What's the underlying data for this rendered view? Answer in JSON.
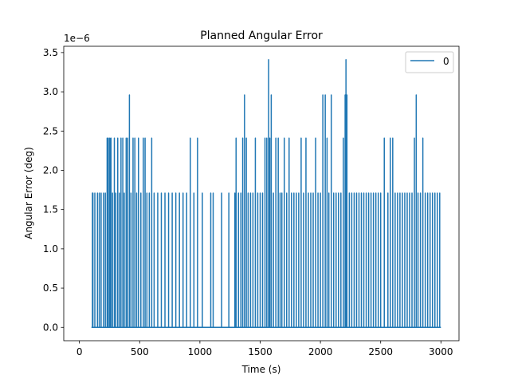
{
  "chart_data": {
    "type": "line",
    "title": "Planned Angular Error",
    "xlabel": "Time (s)",
    "ylabel": "Angular Error (deg)",
    "y_offset_label": "1e−6",
    "xlim": [
      -130,
      3150
    ],
    "ylim": [
      -0.17,
      3.58
    ],
    "x_ticks": [
      0,
      500,
      1000,
      1500,
      2000,
      2500,
      3000
    ],
    "y_ticks": [
      0.0,
      0.5,
      1.0,
      1.5,
      2.0,
      2.5,
      3.0,
      3.5
    ],
    "x_tick_labels": [
      "0",
      "500",
      "1000",
      "1500",
      "2000",
      "2500",
      "3000"
    ],
    "y_tick_labels": [
      "0.0",
      "0.5",
      "1.0",
      "1.5",
      "2.0",
      "2.5",
      "3.0",
      "3.5"
    ],
    "legend": {
      "entries": [
        "0"
      ],
      "placement": "upper right"
    },
    "series": [
      {
        "name": "0",
        "color": "#1f77b4",
        "x_start": 100,
        "x_end": 3000,
        "baseline": 0.0,
        "spikes": [
          [
            108,
            1.71
          ],
          [
            112,
            1.71
          ],
          [
            128,
            1.71
          ],
          [
            150,
            1.71
          ],
          [
            165,
            1.71
          ],
          [
            180,
            1.71
          ],
          [
            200,
            1.71
          ],
          [
            215,
            1.71
          ],
          [
            230,
            2.41
          ],
          [
            240,
            2.41
          ],
          [
            252,
            2.41
          ],
          [
            262,
            2.41
          ],
          [
            275,
            1.71
          ],
          [
            290,
            2.41
          ],
          [
            302,
            1.71
          ],
          [
            318,
            2.41
          ],
          [
            332,
            1.71
          ],
          [
            345,
            2.41
          ],
          [
            360,
            2.41
          ],
          [
            372,
            1.71
          ],
          [
            388,
            2.41
          ],
          [
            400,
            2.41
          ],
          [
            415,
            2.96
          ],
          [
            428,
            1.71
          ],
          [
            445,
            2.41
          ],
          [
            460,
            2.41
          ],
          [
            475,
            1.71
          ],
          [
            490,
            2.41
          ],
          [
            510,
            1.71
          ],
          [
            530,
            2.41
          ],
          [
            545,
            2.41
          ],
          [
            560,
            1.71
          ],
          [
            580,
            1.71
          ],
          [
            600,
            2.41
          ],
          [
            620,
            1.71
          ],
          [
            650,
            1.71
          ],
          [
            680,
            1.71
          ],
          [
            710,
            1.71
          ],
          [
            740,
            1.71
          ],
          [
            770,
            1.71
          ],
          [
            800,
            1.71
          ],
          [
            830,
            1.71
          ],
          [
            860,
            1.71
          ],
          [
            890,
            1.71
          ],
          [
            920,
            2.41
          ],
          [
            950,
            1.71
          ],
          [
            980,
            2.41
          ],
          [
            1020,
            1.71
          ],
          [
            1090,
            1.71
          ],
          [
            1110,
            1.71
          ],
          [
            1180,
            1.71
          ],
          [
            1240,
            1.71
          ],
          [
            1290,
            1.71
          ],
          [
            1300,
            2.41
          ],
          [
            1320,
            1.71
          ],
          [
            1340,
            1.71
          ],
          [
            1355,
            2.41
          ],
          [
            1370,
            2.96
          ],
          [
            1385,
            2.41
          ],
          [
            1400,
            1.71
          ],
          [
            1420,
            1.71
          ],
          [
            1440,
            1.71
          ],
          [
            1460,
            2.41
          ],
          [
            1480,
            1.71
          ],
          [
            1500,
            1.71
          ],
          [
            1520,
            1.71
          ],
          [
            1540,
            2.41
          ],
          [
            1555,
            2.41
          ],
          [
            1570,
            3.41
          ],
          [
            1580,
            2.41
          ],
          [
            1592,
            2.96
          ],
          [
            1610,
            1.71
          ],
          [
            1630,
            2.41
          ],
          [
            1650,
            2.41
          ],
          [
            1665,
            1.71
          ],
          [
            1680,
            1.71
          ],
          [
            1700,
            2.41
          ],
          [
            1720,
            1.71
          ],
          [
            1740,
            2.41
          ],
          [
            1760,
            1.71
          ],
          [
            1780,
            1.71
          ],
          [
            1800,
            1.71
          ],
          [
            1820,
            1.71
          ],
          [
            1840,
            2.41
          ],
          [
            1860,
            1.71
          ],
          [
            1880,
            2.41
          ],
          [
            1900,
            1.71
          ],
          [
            1920,
            1.71
          ],
          [
            1940,
            1.71
          ],
          [
            1960,
            2.41
          ],
          [
            1980,
            1.71
          ],
          [
            2000,
            1.71
          ],
          [
            2020,
            2.96
          ],
          [
            2040,
            2.96
          ],
          [
            2055,
            2.41
          ],
          [
            2070,
            1.71
          ],
          [
            2090,
            2.96
          ],
          [
            2110,
            1.71
          ],
          [
            2130,
            1.71
          ],
          [
            2150,
            1.71
          ],
          [
            2170,
            1.71
          ],
          [
            2190,
            2.41
          ],
          [
            2205,
            2.96
          ],
          [
            2212,
            3.41
          ],
          [
            2220,
            2.96
          ],
          [
            2240,
            1.71
          ],
          [
            2260,
            1.71
          ],
          [
            2280,
            1.71
          ],
          [
            2300,
            1.71
          ],
          [
            2320,
            1.71
          ],
          [
            2340,
            1.71
          ],
          [
            2360,
            1.71
          ],
          [
            2380,
            1.71
          ],
          [
            2400,
            1.71
          ],
          [
            2420,
            1.71
          ],
          [
            2440,
            1.71
          ],
          [
            2460,
            1.71
          ],
          [
            2480,
            1.71
          ],
          [
            2500,
            1.71
          ],
          [
            2530,
            2.41
          ],
          [
            2560,
            1.71
          ],
          [
            2580,
            2.41
          ],
          [
            2600,
            2.41
          ],
          [
            2620,
            1.71
          ],
          [
            2640,
            1.71
          ],
          [
            2660,
            1.71
          ],
          [
            2680,
            1.71
          ],
          [
            2700,
            1.71
          ],
          [
            2720,
            1.71
          ],
          [
            2740,
            1.71
          ],
          [
            2760,
            1.71
          ],
          [
            2780,
            2.41
          ],
          [
            2795,
            2.96
          ],
          [
            2810,
            1.71
          ],
          [
            2830,
            1.71
          ],
          [
            2850,
            2.41
          ],
          [
            2870,
            1.71
          ],
          [
            2890,
            1.71
          ],
          [
            2910,
            1.71
          ],
          [
            2930,
            1.71
          ],
          [
            2950,
            1.71
          ],
          [
            2970,
            1.71
          ],
          [
            2990,
            1.71
          ]
        ]
      }
    ]
  }
}
